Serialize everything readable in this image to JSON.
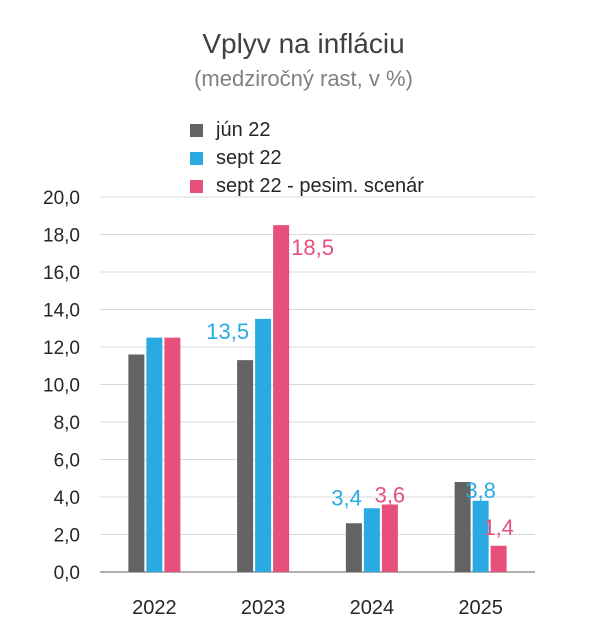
{
  "chart_data": {
    "type": "bar",
    "title": "Vplyv na infláciu",
    "subtitle": "(medziročný rast, v %)",
    "xlabel": "",
    "ylabel": "",
    "ylim": [
      0,
      20
    ],
    "ytick_step": 2,
    "ytick_labels": [
      "0,0",
      "2,0",
      "4,0",
      "6,0",
      "8,0",
      "10,0",
      "12,0",
      "14,0",
      "16,0",
      "18,0",
      "20,0"
    ],
    "grid": true,
    "legend_position": "top-left",
    "categories": [
      "2022",
      "2023",
      "2024",
      "2025"
    ],
    "series": [
      {
        "name": "jún 22",
        "color": "#636363",
        "values": [
          11.6,
          11.3,
          2.6,
          4.8
        ],
        "labels": [
          "",
          "",
          "",
          ""
        ]
      },
      {
        "name": "sept 22",
        "color": "#29aae2",
        "values": [
          12.5,
          13.5,
          3.4,
          3.8
        ],
        "labels": [
          "",
          "13,5",
          "3,4",
          "3,8"
        ]
      },
      {
        "name": "sept 22 - pesim. scenár",
        "color": "#e6507a",
        "values": [
          12.5,
          18.5,
          3.6,
          1.4
        ],
        "labels": [
          "",
          "18,5",
          "3,6",
          "1,4"
        ]
      }
    ]
  }
}
